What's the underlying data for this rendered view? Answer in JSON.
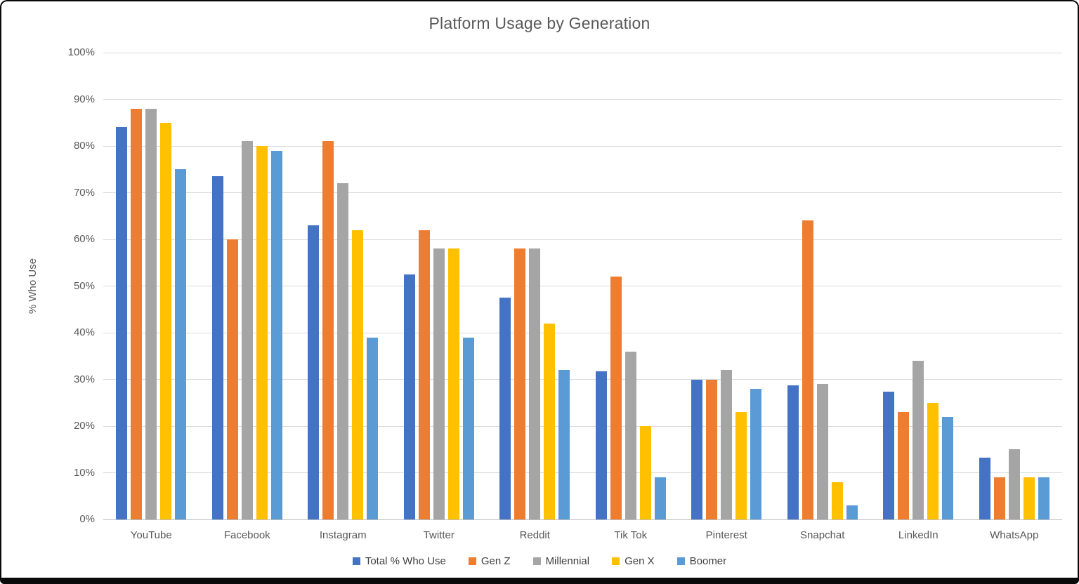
{
  "title": "Platform Usage by Generation",
  "y_axis": {
    "label": "% Who Use"
  },
  "chart_data": {
    "type": "bar",
    "title": "Platform Usage by Generation",
    "xlabel": "",
    "ylabel": "% Who Use",
    "ylim": [
      0,
      100
    ],
    "y_ticks": [
      "0%",
      "10%",
      "20%",
      "30%",
      "40%",
      "50%",
      "60%",
      "70%",
      "80%",
      "90%",
      "100%"
    ],
    "grid": true,
    "legend_position": "bottom",
    "categories": [
      "YouTube",
      "Facebook",
      "Instagram",
      "Twitter",
      "Reddit",
      "Tik Tok",
      "Pinterest",
      "Snapchat",
      "LinkedIn",
      "WhatsApp"
    ],
    "series": [
      {
        "name": "Total % Who Use",
        "color": "#4472C4",
        "values": [
          84,
          73.5,
          63,
          52.5,
          47.5,
          31.8,
          30,
          28.7,
          27.3,
          13.2
        ]
      },
      {
        "name": "Gen Z",
        "color": "#ED7D31",
        "values": [
          88,
          60,
          81,
          62,
          58,
          52,
          30,
          64,
          23,
          9
        ]
      },
      {
        "name": "Millennial",
        "color": "#A5A5A5",
        "values": [
          88,
          81,
          72,
          58,
          58,
          36,
          32,
          29,
          34,
          15
        ]
      },
      {
        "name": "Gen X",
        "color": "#FFC000",
        "values": [
          85,
          80,
          62,
          58,
          42,
          20,
          23,
          8,
          25,
          9
        ]
      },
      {
        "name": "Boomer",
        "color": "#5B9BD5",
        "values": [
          75,
          79,
          39,
          39,
          32,
          9,
          28,
          3,
          22,
          9
        ]
      }
    ]
  }
}
